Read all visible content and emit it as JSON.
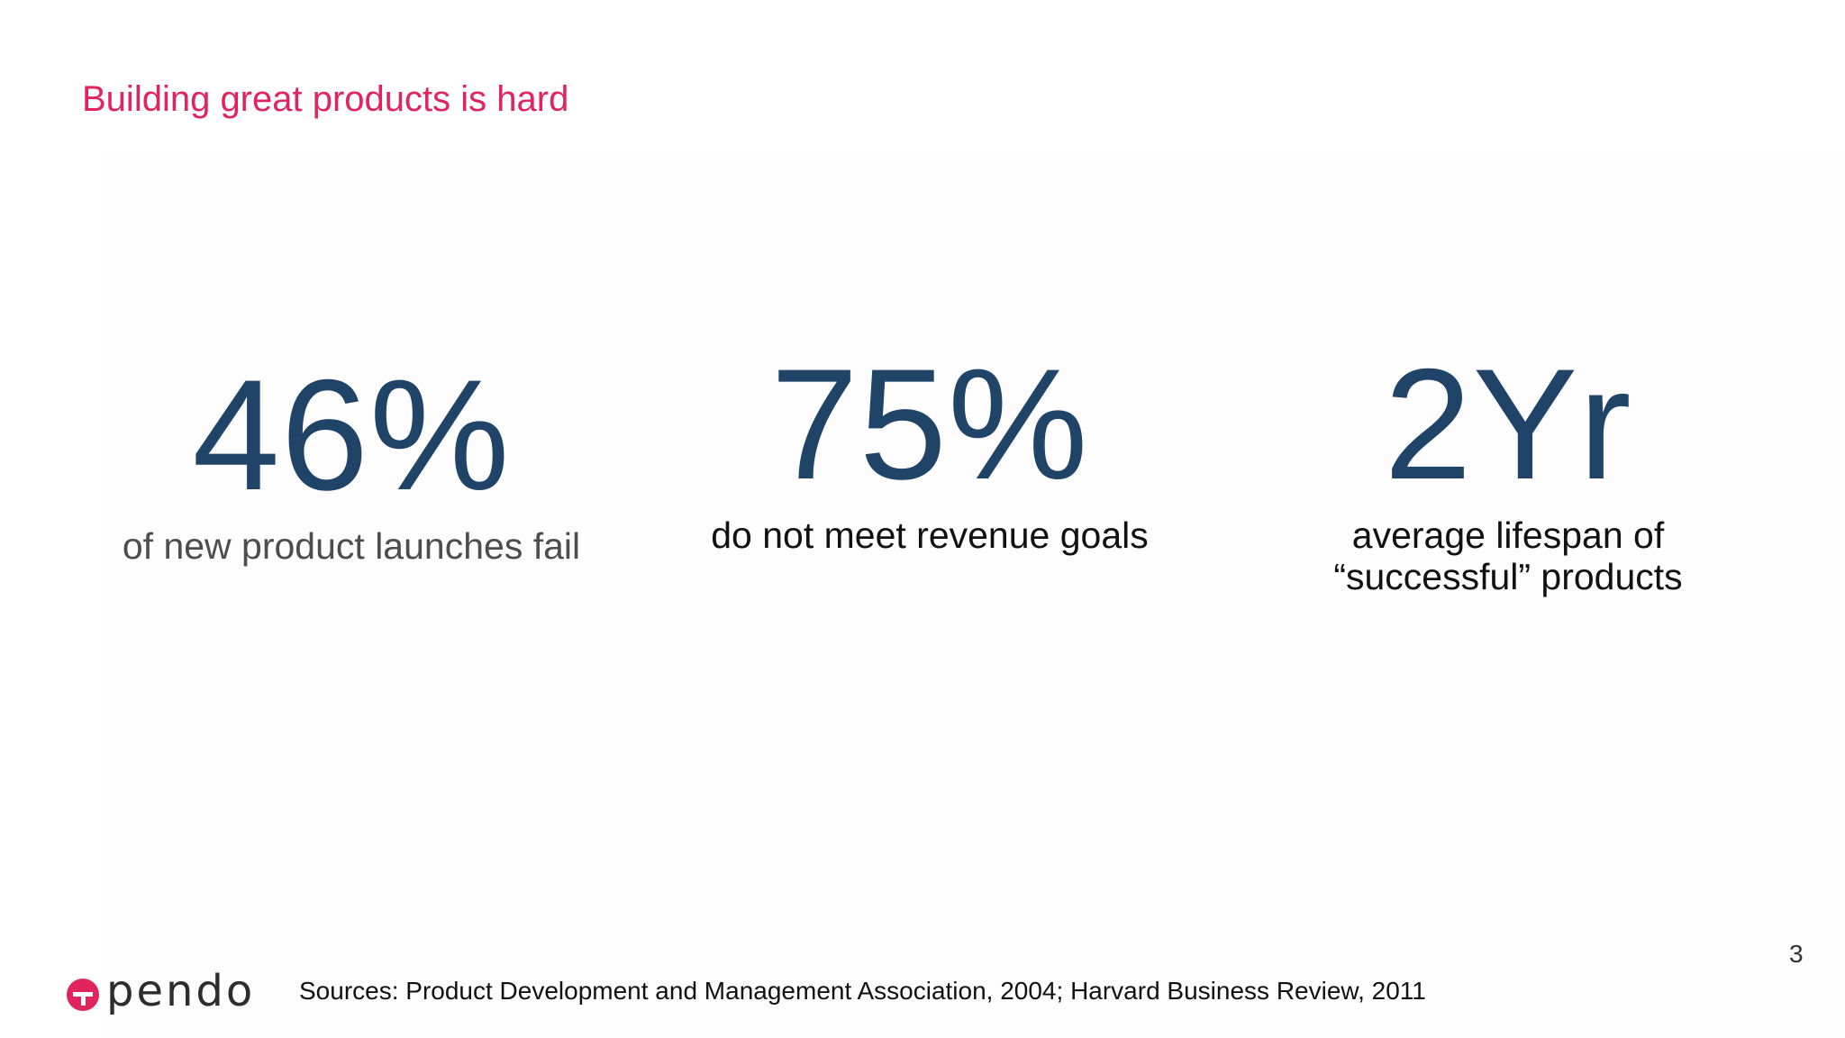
{
  "slide": {
    "title": "Building great products is hard",
    "stats": [
      {
        "value": "46%",
        "caption_lines": [
          "of new product launches fail"
        ]
      },
      {
        "value": "75%",
        "caption_lines": [
          "do not meet revenue goals"
        ]
      },
      {
        "value": "2Yr",
        "caption_lines": [
          "average lifespan of",
          "“successful” products"
        ]
      }
    ],
    "footer": {
      "logo_text": "pendo",
      "sources": "Sources: Product Development and Management Association, 2004; Harvard Business Review, 2011",
      "page_number": "3"
    },
    "colors": {
      "title": "#e0245e",
      "stat_value": "#1f4468",
      "logo_mark": "#e0245e"
    },
    "icons": {
      "logo_mark": "pendo-logo-icon"
    }
  }
}
